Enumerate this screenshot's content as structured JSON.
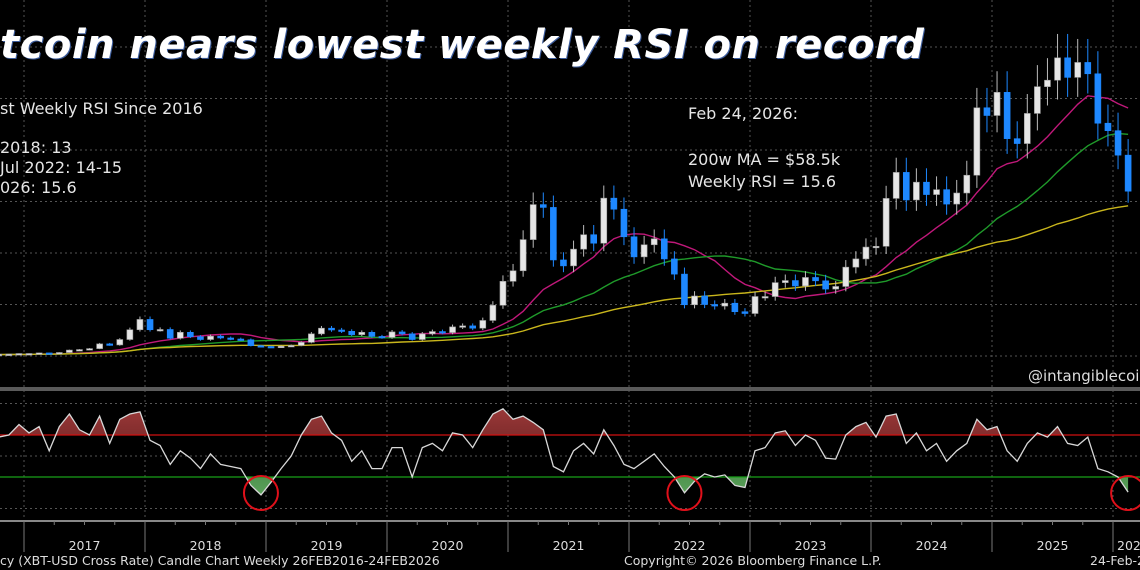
{
  "title": "tcoin nears lowest weekly RSI on record",
  "left_notes": {
    "heading": "st Weekly RSI Since 2016",
    "line1": "2018: 13",
    "line2": "Jul 2022: 14-15",
    "line3": "026: 15.6"
  },
  "right_notes": {
    "date": "Feb 24, 2026:",
    "ma": "200w MA = $58.5k",
    "rsi": "Weekly RSI = 15.6"
  },
  "handle": "@intangiblecoin",
  "footer": {
    "description": "cy (XBT-USD Cross Rate) Candle Chart Weekly 26FEB2016-24FEB2026",
    "copyright": "Copyright© 2026 Bloomberg Finance L.P.",
    "date": "24-Feb-2"
  },
  "colors": {
    "background": "#000000",
    "candle_up": "#e6e6e6",
    "candle_down": "#1e88ff",
    "ma_fast": "#c0187a",
    "ma_mid": "#1f9a2a",
    "ma_slow": "#c9b61c",
    "rsi_line": "#d8d8d8",
    "rsi_overbought": "#d01010",
    "rsi_oversold": "#18a018",
    "highlight_circle": "#e0101a"
  },
  "chart_data": [
    {
      "type": "candlestick",
      "panel": "price",
      "scale": "linear",
      "units": "USD thousands",
      "ylim": [
        0,
        130
      ],
      "grid": true,
      "start": "2016-02",
      "frequency": "monthly (approximate closes)",
      "closes": [
        0.44,
        0.42,
        0.45,
        0.53,
        0.67,
        0.62,
        0.57,
        0.61,
        0.7,
        0.74,
        0.96,
        0.97,
        1.19,
        1.08,
        1.35,
        2.3,
        2.5,
        2.87,
        4.7,
        4.3,
        6.4,
        10.2,
        14.2,
        10.2,
        10.3,
        6.9,
        9.2,
        7.5,
        6.4,
        7.7,
        7.0,
        6.6,
        6.3,
        4.0,
        3.7,
        3.45,
        3.8,
        4.1,
        5.3,
        8.6,
        10.8,
        10.1,
        9.6,
        8.3,
        9.2,
        7.6,
        7.2,
        9.35,
        8.6,
        6.4,
        8.6,
        9.5,
        9.1,
        11.3,
        11.7,
        10.8,
        13.8,
        19.7,
        29.0,
        33.1,
        45.2,
        58.8,
        57.7,
        37.3,
        35.0,
        41.5,
        47.1,
        43.8,
        61.3,
        57.0,
        46.3,
        38.5,
        43.2,
        45.5,
        37.7,
        31.8,
        19.9,
        23.3,
        20.0,
        19.4,
        20.5,
        17.2,
        16.5,
        23.1,
        23.1,
        28.5,
        29.3,
        27.2,
        30.5,
        29.2,
        26.0,
        27.0,
        34.5,
        37.7,
        42.3,
        42.6,
        61.2,
        71.3,
        60.6,
        67.5,
        62.7,
        64.6,
        59.0,
        63.3,
        70.2,
        96.4,
        93.4,
        102.4,
        84.4,
        82.5,
        94.2,
        104.6,
        107.1,
        115.8,
        108.2,
        114.0,
        109.6,
        90.4,
        87.5,
        78.0,
        64.0
      ],
      "moving_averages": [
        {
          "window": "50w",
          "color_key": "ma_fast"
        },
        {
          "window": "100w",
          "color_key": "ma_mid"
        },
        {
          "window": "200w",
          "color_key": "ma_slow",
          "last_value": 58.5
        }
      ],
      "x_tick_labels": [
        "2017",
        "2018",
        "2019",
        "2020",
        "2021",
        "2022",
        "2023",
        "2024",
        "2025",
        "202"
      ]
    },
    {
      "type": "line",
      "panel": "rsi",
      "ylim": [
        0,
        100
      ],
      "reference_lines": [
        70,
        30
      ],
      "start": "2016-02",
      "frequency": "monthly (approximate weekly RSI)",
      "values": [
        55,
        50,
        58,
        72,
        78,
        60,
        50,
        56,
        68,
        70,
        80,
        72,
        78,
        55,
        78,
        90,
        75,
        70,
        88,
        62,
        85,
        90,
        92,
        65,
        60,
        42,
        55,
        48,
        38,
        52,
        42,
        40,
        38,
        22,
        13,
        25,
        38,
        50,
        70,
        85,
        88,
        72,
        65,
        45,
        55,
        38,
        38,
        58,
        58,
        30,
        58,
        62,
        55,
        72,
        70,
        58,
        75,
        90,
        95,
        85,
        88,
        82,
        75,
        40,
        35,
        55,
        62,
        52,
        75,
        60,
        42,
        38,
        45,
        52,
        40,
        30,
        15,
        26,
        33,
        30,
        32,
        22,
        20,
        55,
        58,
        72,
        74,
        60,
        70,
        65,
        48,
        47,
        70,
        78,
        82,
        68,
        88,
        90,
        62,
        72,
        55,
        62,
        45,
        55,
        62,
        85,
        75,
        78,
        55,
        45,
        62,
        72,
        68,
        78,
        62,
        60,
        68,
        38,
        35,
        30,
        15.6
      ],
      "highlighted_lows": [
        "2018-12",
        "2022-06",
        "2026-02"
      ]
    }
  ]
}
